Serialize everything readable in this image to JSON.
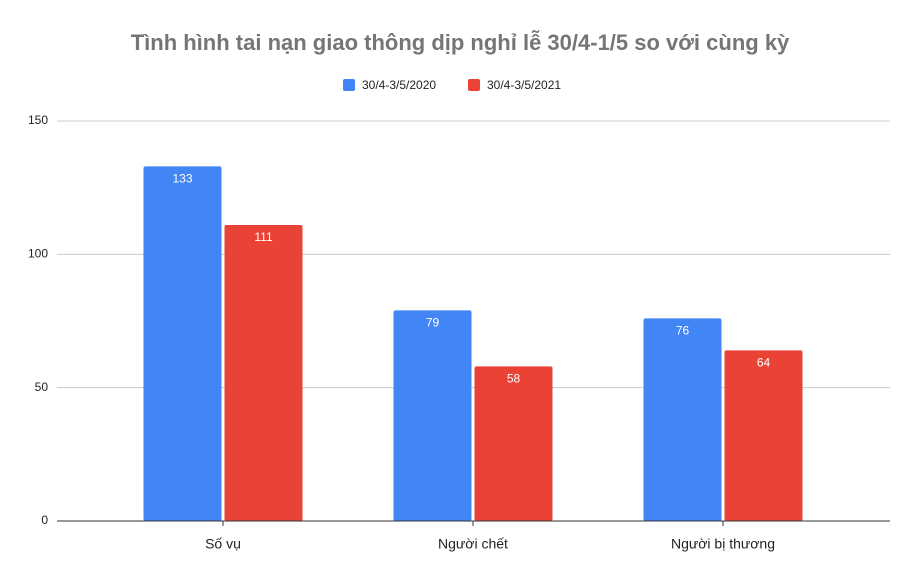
{
  "chart_data": {
    "type": "bar",
    "title": "Tình hình tai nạn giao thông dịp nghỉ lễ 30/4-1/5 so với cùng kỳ",
    "categories": [
      "Số vụ",
      "Người chết",
      "Người bị thương"
    ],
    "series": [
      {
        "name": "30/4-3/5/2020",
        "color": "#4285f4",
        "values": [
          133,
          79,
          76
        ]
      },
      {
        "name": "30/4-3/5/2021",
        "color": "#ea4335",
        "values": [
          111,
          58,
          64
        ]
      }
    ],
    "ylim": [
      0,
      150
    ],
    "yticks": [
      0,
      50,
      100,
      150
    ],
    "grid": true,
    "legend": "top"
  }
}
